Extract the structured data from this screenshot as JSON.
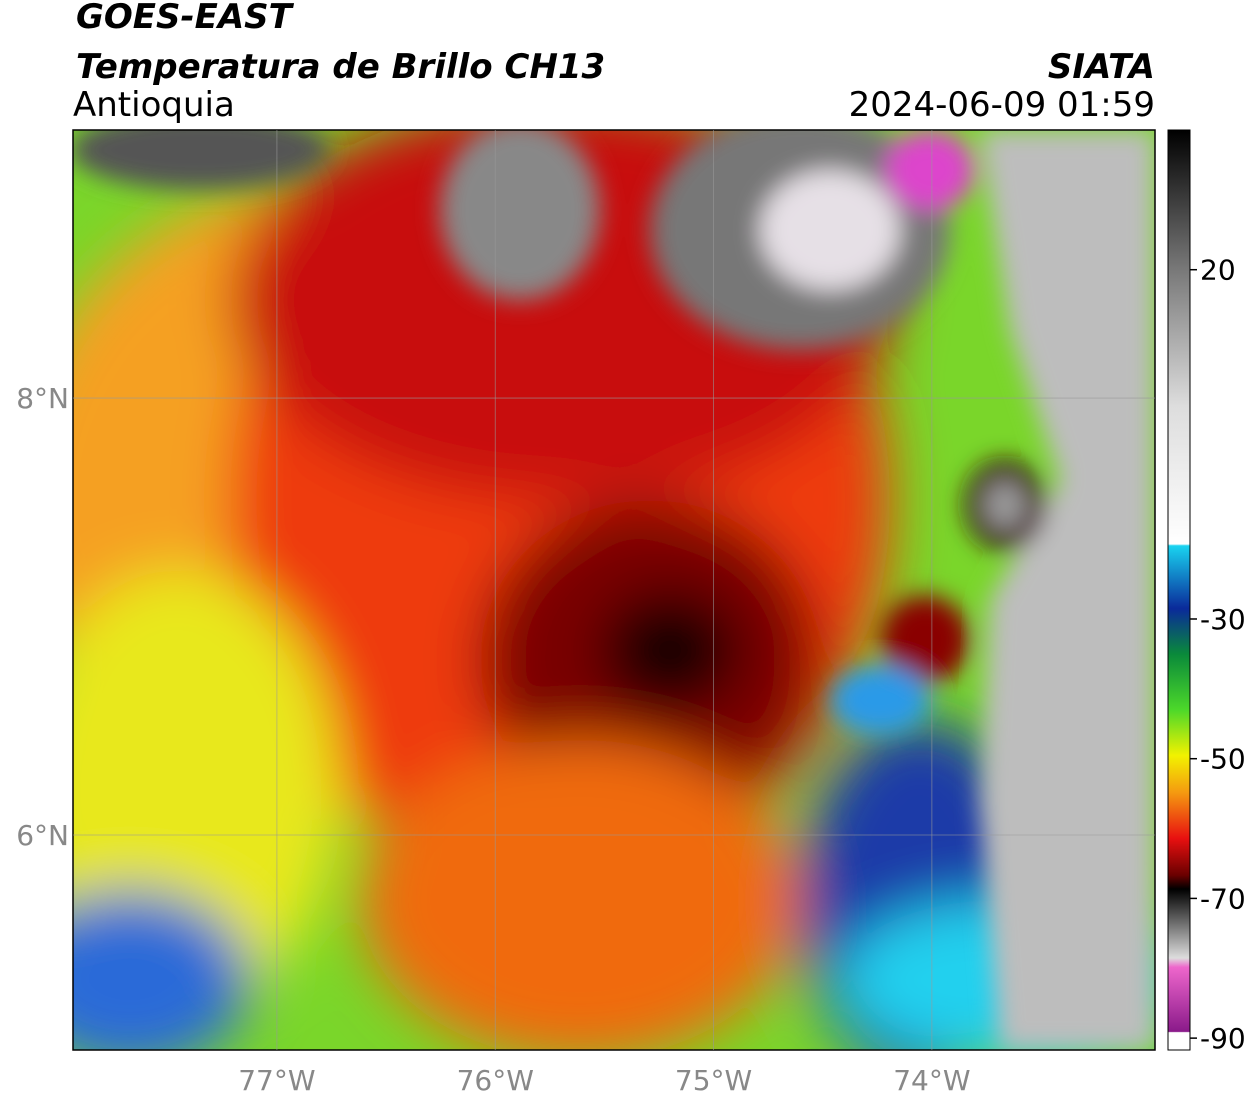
{
  "header": {
    "satellite": "GOES-EAST",
    "product": "Temperatura de Brillo CH13",
    "region": "Antioquia",
    "source": "SIATA",
    "datetime": "2024-06-09 01:59"
  },
  "map": {
    "lonlim": [
      -77.934,
      -72.978
    ],
    "latlim": [
      5.016,
      9.227
    ],
    "lonticks": [
      {
        "value": -77,
        "label": "77°W"
      },
      {
        "value": -76,
        "label": "76°W"
      },
      {
        "value": -75,
        "label": "75°W"
      },
      {
        "value": -74,
        "label": "74°W"
      }
    ],
    "latticks": [
      {
        "value": 8,
        "label": "8°N"
      },
      {
        "value": 6,
        "label": "6°N"
      }
    ],
    "grid": true
  },
  "colorbar": {
    "lim": [
      -91.7,
      40
    ],
    "ticks": [
      20,
      -30,
      -50,
      -70,
      -90
    ]
  }
}
